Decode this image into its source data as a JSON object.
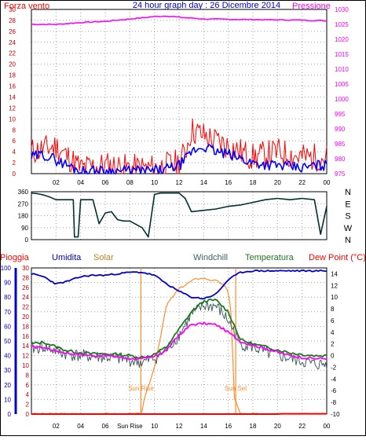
{
  "header": {
    "left_label": "Forza vento",
    "title": "24 hour graph day : 26 Dicembre 2014",
    "right_label": "Pressione"
  },
  "colors": {
    "wind": "#ff0000",
    "gust": "#0000ff",
    "pressure": "#ff00ff",
    "direction": "#003030",
    "rain": "#ff0000",
    "humidity": "#0000cc",
    "solar": "#ff8c28",
    "windchill": "#406060",
    "temperature": "#1e781e",
    "dewpoint": "#ff00ff",
    "sun_marker": "#ff8c28",
    "grid": "#a0a0a0",
    "frame": "#000000"
  },
  "chart_data": [
    {
      "type": "line",
      "panel": "wind-pressure",
      "x_ticks": [
        "02",
        "04",
        "06",
        "08",
        "10",
        "12",
        "14",
        "16",
        "18",
        "20",
        "22",
        "00"
      ],
      "y_left": {
        "label": "Forza vento",
        "ticks": [
          0,
          2,
          4,
          6,
          8,
          10,
          12,
          14,
          16,
          18,
          20,
          22,
          24,
          26,
          28,
          30
        ],
        "range": [
          0,
          30
        ]
      },
      "y_right": {
        "label": "Pressione",
        "ticks": [
          975,
          980,
          985,
          990,
          995,
          1000,
          1005,
          1010,
          1015,
          1020,
          1025,
          1030
        ],
        "range": [
          975,
          1030
        ]
      },
      "series": [
        {
          "key": "wind",
          "axis": "left",
          "x": [
            0,
            2,
            3,
            4,
            6,
            8,
            10,
            12,
            12.5,
            13,
            14,
            15,
            16,
            17,
            18,
            20,
            22,
            24
          ],
          "y": [
            4,
            5,
            3,
            1,
            1.5,
            1,
            1,
            2,
            4,
            8,
            7,
            6,
            5,
            4,
            3,
            4,
            3,
            3
          ]
        },
        {
          "key": "gust",
          "axis": "left",
          "x": [
            0,
            1,
            2,
            3,
            4,
            6,
            8,
            10,
            11,
            12,
            12.5,
            13,
            14,
            15,
            16,
            18,
            20,
            22,
            23,
            24
          ],
          "y": [
            3,
            3.5,
            2.5,
            1.5,
            0.5,
            0.5,
            0.5,
            0.5,
            0.8,
            1.5,
            2.5,
            4,
            5,
            4,
            3.5,
            2,
            1.5,
            1,
            1.5,
            1.5
          ]
        },
        {
          "key": "pressure",
          "axis": "right",
          "x": [
            0,
            2,
            4,
            6,
            8,
            10,
            11,
            12,
            14,
            16,
            18,
            20,
            22,
            24
          ],
          "y": [
            1025,
            1025,
            1025.6,
            1026,
            1026.8,
            1027.6,
            1027.8,
            1027.4,
            1026.8,
            1026.7,
            1026.6,
            1026.5,
            1026.4,
            1026.2
          ]
        }
      ]
    },
    {
      "type": "line",
      "panel": "wind-direction",
      "x_ticks": [
        "02",
        "04",
        "06",
        "08",
        "10",
        "12",
        "14",
        "16",
        "18",
        "20",
        "22",
        "00"
      ],
      "y_left": {
        "ticks": [
          0,
          90,
          180,
          270,
          360
        ],
        "range": [
          0,
          360
        ]
      },
      "y_right": {
        "ticks": [
          "N",
          "W",
          "S",
          "E",
          "N"
        ]
      },
      "series": [
        {
          "key": "direction",
          "x": [
            0,
            0.5,
            1,
            1.5,
            2,
            2.5,
            3,
            3.4,
            3.5,
            3.8,
            4,
            5,
            5.5,
            6,
            6.5,
            7,
            7.5,
            8,
            9,
            9.5,
            10,
            10.5,
            11,
            11.5,
            12,
            12.5,
            13,
            14,
            15,
            16,
            17,
            18,
            19,
            20,
            21,
            22,
            23,
            23.5,
            24
          ],
          "y": [
            350,
            345,
            335,
            320,
            300,
            300,
            300,
            300,
            20,
            20,
            300,
            300,
            120,
            200,
            210,
            150,
            140,
            140,
            90,
            20,
            340,
            350,
            350,
            350,
            350,
            310,
            210,
            220,
            230,
            250,
            260,
            280,
            300,
            310,
            300,
            310,
            300,
            40,
            250
          ]
        }
      ]
    },
    {
      "type": "line",
      "panel": "weather",
      "x_ticks": [
        "02",
        "04",
        "06",
        "Sun Rise",
        "10",
        "12",
        "14",
        "16",
        "18",
        "20",
        "22",
        "00"
      ],
      "legend": [
        "Pioggia",
        "Umidita",
        "Solar",
        "Windchill",
        "Temperatura",
        "Dew Point (°C)"
      ],
      "y_left1": {
        "label": "Pioggia",
        "ticks": [
          0,
          10,
          20,
          30,
          40,
          50,
          60,
          70,
          80,
          90,
          100
        ],
        "range": [
          0,
          100
        ]
      },
      "y_left2": {
        "label": "Umidita",
        "ticks": [
          0,
          2,
          4,
          6,
          8,
          10,
          12,
          14,
          16,
          18,
          20,
          22,
          24,
          26,
          28,
          30
        ],
        "range": [
          0,
          30
        ]
      },
      "y_right": {
        "label": "Dew Point (°C)",
        "ticks": [
          -10,
          -8,
          -6,
          -4,
          -2,
          0,
          2,
          4,
          6,
          8,
          10,
          12,
          14
        ],
        "range": [
          -10,
          15
        ]
      },
      "annotations": [
        {
          "key": "sunrise",
          "label": "Sun Rise",
          "x": 8.9
        },
        {
          "key": "sunset",
          "label": "Sun Set",
          "x": 16.6
        }
      ],
      "series": [
        {
          "key": "humidity",
          "axis": "left1",
          "x": [
            0,
            1,
            2,
            3,
            4,
            5,
            6,
            7,
            8,
            9,
            10,
            11,
            12,
            13,
            14,
            15,
            16,
            17,
            18,
            20,
            22,
            24
          ],
          "y": [
            96,
            94,
            89,
            91,
            94,
            95,
            95,
            96,
            97,
            97,
            95,
            89,
            84,
            80,
            79,
            82,
            92,
            97,
            98,
            98,
            98,
            98
          ]
        },
        {
          "key": "solar",
          "axis": "solar",
          "x": [
            0,
            8.8,
            9,
            9.2,
            10,
            10.5,
            11,
            12,
            13,
            13.5,
            14,
            14.5,
            15,
            15.5,
            16,
            16.2,
            16.5,
            17,
            24
          ],
          "y": [
            0,
            0,
            15,
            60,
            180,
            300,
            420,
            480,
            510,
            520,
            520,
            515,
            510,
            500,
            470,
            400,
            60,
            0,
            0
          ]
        },
        {
          "key": "temperature",
          "axis": "right",
          "x": [
            0,
            1,
            2,
            3,
            4,
            5,
            6,
            7,
            8,
            9,
            10,
            11,
            12,
            13,
            14,
            15,
            16,
            17,
            18,
            19,
            20,
            21,
            22,
            23,
            24
          ],
          "y": [
            2,
            2.3,
            1.5,
            0.8,
            0.5,
            0.3,
            0.3,
            0.2,
            0,
            -0.3,
            0.2,
            1.5,
            4.5,
            7.5,
            9.3,
            9.5,
            7.5,
            2.7,
            2,
            1.5,
            1,
            0.5,
            0.2,
            0,
            0
          ]
        },
        {
          "key": "windchill",
          "axis": "right",
          "x": [
            0,
            1,
            2,
            3,
            4,
            5,
            6,
            7,
            8,
            9,
            10,
            11,
            12,
            13,
            14,
            15,
            16,
            17,
            18,
            19,
            20,
            21,
            22,
            23,
            24
          ],
          "y": [
            1.2,
            1.5,
            0.8,
            0.2,
            0,
            -0.2,
            -0.3,
            -0.5,
            -0.8,
            -1.2,
            -0.5,
            1,
            3.5,
            7,
            8.5,
            8.5,
            6,
            2,
            1.5,
            0.5,
            0,
            -0.5,
            -1,
            -1.5,
            -1.5
          ]
        },
        {
          "key": "dewpoint",
          "axis": "right",
          "x": [
            0,
            1,
            2,
            3,
            4,
            5,
            6,
            7,
            8,
            9,
            10,
            11,
            12,
            13,
            14,
            15,
            16,
            17,
            18,
            19,
            20,
            21,
            22,
            23,
            24
          ],
          "y": [
            1.5,
            1.4,
            0.8,
            0.4,
            0.2,
            0,
            0,
            -0.2,
            -0.5,
            -0.6,
            -0.2,
            1,
            3.5,
            5.3,
            5.5,
            5.3,
            4,
            2.4,
            1.8,
            1.2,
            0.6,
            0,
            -0.3,
            -0.5,
            -0.5
          ]
        },
        {
          "key": "rain",
          "axis": "left1",
          "x": [
            0,
            20,
            20.3,
            24
          ],
          "y": [
            0,
            0,
            0.2,
            0.2
          ]
        }
      ]
    }
  ]
}
